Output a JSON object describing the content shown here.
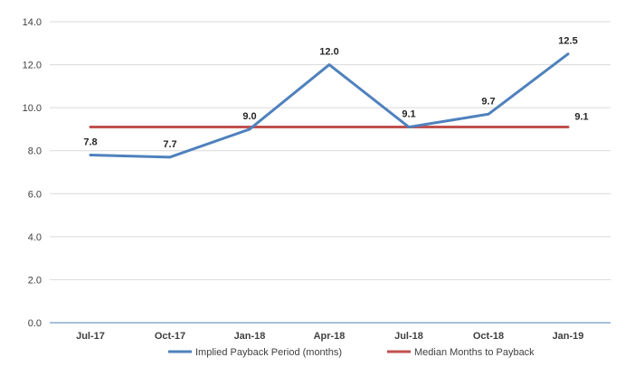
{
  "chart_data": {
    "type": "line",
    "categories": [
      "Jul-17",
      "Oct-17",
      "Jan-18",
      "Apr-18",
      "Jul-18",
      "Oct-18",
      "Jan-19"
    ],
    "series": [
      {
        "name": "Implied Payback Period (months)",
        "values": [
          7.8,
          7.7,
          9.0,
          12.0,
          9.1,
          9.7,
          12.5
        ],
        "color": "#4f81bd",
        "labels": [
          "7.8",
          "7.7",
          "9.0",
          "12.0",
          "9.1",
          "9.7",
          "12.5"
        ]
      },
      {
        "name": "Median Months to Payback",
        "values": [
          9.1,
          9.1,
          9.1,
          9.1,
          9.1,
          9.1,
          9.1
        ],
        "color": "#c0504d",
        "labels": [
          "",
          "",
          "",
          "",
          "",
          "",
          "9.1"
        ]
      }
    ],
    "y_ticks": [
      "0.0",
      "2.0",
      "4.0",
      "6.0",
      "8.0",
      "10.0",
      "12.0",
      "14.0"
    ],
    "ylim": [
      0,
      14
    ],
    "grid": true,
    "legend_position": "bottom",
    "axis_color": "#4f81bd",
    "grid_color": "#d9d9d9"
  }
}
